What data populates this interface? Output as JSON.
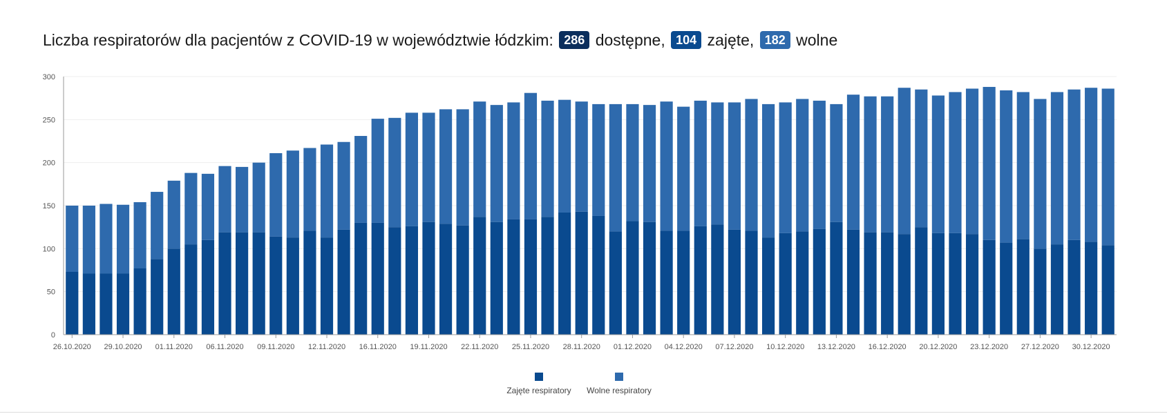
{
  "title": {
    "prefix": "Liczba respiratorów dla pacjentów z COVID-19 w województwie łódzkim:",
    "total_value": "286",
    "total_label": "dostępne,",
    "occupied_value": "104",
    "occupied_label": "zajęte,",
    "free_value": "182",
    "free_label": "wolne"
  },
  "colors": {
    "occupied": "#0a4a8f",
    "free": "#2e6aad",
    "grid": "#eeeeee",
    "axis": "#999999"
  },
  "chart_data": {
    "type": "bar",
    "stacked": true,
    "title": "",
    "xlabel": "",
    "ylabel": "",
    "ylim": [
      0,
      300
    ],
    "yticks": [
      0,
      50,
      100,
      150,
      200,
      250,
      300
    ],
    "grid": true,
    "legend_position": "bottom-center",
    "xtick_labels": [
      "26.10.2020",
      "29.10.2020",
      "01.11.2020",
      "06.11.2020",
      "09.11.2020",
      "12.11.2020",
      "16.11.2020",
      "19.11.2020",
      "22.11.2020",
      "25.11.2020",
      "28.11.2020",
      "01.12.2020",
      "04.12.2020",
      "07.12.2020",
      "10.12.2020",
      "13.12.2020",
      "16.12.2020",
      "20.12.2020",
      "23.12.2020",
      "27.12.2020",
      "30.12.2020"
    ],
    "xtick_every": 3,
    "series": [
      {
        "name": "Zajęte respiratory",
        "values": [
          73,
          71,
          71,
          71,
          77,
          88,
          100,
          105,
          110,
          119,
          119,
          119,
          114,
          113,
          121,
          113,
          122,
          130,
          130,
          125,
          126,
          131,
          129,
          127,
          137,
          131,
          134,
          134,
          137,
          142,
          143,
          138,
          120,
          132,
          131,
          121,
          121,
          126,
          128,
          122,
          121,
          113,
          118,
          120,
          123,
          131,
          122,
          119,
          119,
          117,
          125,
          118,
          118,
          117,
          110,
          107,
          111,
          100,
          105,
          110,
          108,
          104
        ]
      },
      {
        "name": "Wolne respiratory",
        "values": [
          77,
          79,
          81,
          80,
          77,
          78,
          79,
          83,
          77,
          77,
          76,
          81,
          97,
          101,
          96,
          108,
          102,
          101,
          121,
          127,
          132,
          127,
          133,
          135,
          134,
          136,
          136,
          147,
          135,
          131,
          128,
          130,
          148,
          136,
          136,
          150,
          144,
          146,
          142,
          148,
          153,
          155,
          152,
          154,
          149,
          137,
          157,
          158,
          158,
          170,
          160,
          160,
          164,
          169,
          178,
          177,
          171,
          174,
          177,
          175,
          179,
          182
        ]
      }
    ]
  }
}
